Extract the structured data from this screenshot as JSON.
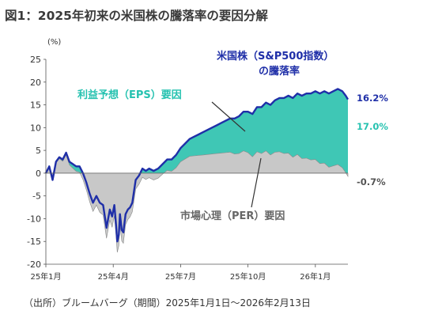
{
  "chart_data": {
    "type": "area",
    "title": "図1：2025年初来の米国株の騰落率の要因分解",
    "unit": "(%)",
    "ylim": [
      -20,
      25
    ],
    "yticks": [
      25,
      20,
      15,
      10,
      5,
      0,
      -5,
      -10,
      -15,
      -20
    ],
    "xticks": [
      "25年1月",
      "25年4月",
      "25年7月",
      "25年10月",
      "26年1月"
    ],
    "xtick_months": [
      0,
      3,
      6,
      9,
      12
    ],
    "grid": false,
    "x": [
      0,
      0.15,
      0.3,
      0.45,
      0.6,
      0.75,
      0.9,
      1.05,
      1.2,
      1.35,
      1.5,
      1.65,
      1.8,
      1.95,
      2.1,
      2.25,
      2.4,
      2.55,
      2.7,
      2.85,
      2.95,
      3.05,
      3.12,
      3.18,
      3.25,
      3.3,
      3.38,
      3.45,
      3.55,
      3.65,
      3.75,
      3.85,
      4.0,
      4.15,
      4.3,
      4.45,
      4.6,
      4.8,
      5.0,
      5.2,
      5.4,
      5.6,
      5.8,
      6.0,
      6.2,
      6.4,
      6.6,
      6.8,
      7.0,
      7.2,
      7.4,
      7.6,
      7.8,
      8.0,
      8.2,
      8.4,
      8.6,
      8.8,
      9.0,
      9.2,
      9.4,
      9.6,
      9.8,
      10.0,
      10.2,
      10.4,
      10.6,
      10.8,
      11.0,
      11.2,
      11.4,
      11.6,
      11.8,
      12.0,
      12.2,
      12.4,
      12.6,
      12.8,
      13.0,
      13.2,
      13.35,
      13.45
    ],
    "series": [
      {
        "name": "米国株（S&P500指数）の騰落率",
        "color": "#1f2fa8",
        "values": [
          0,
          1.5,
          -1.5,
          2.5,
          3.5,
          3.0,
          4.5,
          2.5,
          2.0,
          1.5,
          1.5,
          0,
          -2.0,
          -4.5,
          -6.5,
          -5.0,
          -6.5,
          -7.0,
          -12.0,
          -8.0,
          -9.5,
          -7.0,
          -11.0,
          -15.0,
          -13.5,
          -9.0,
          -12.5,
          -13.0,
          -9.0,
          -8.0,
          -7.5,
          -6.5,
          -1.5,
          -0.5,
          1.0,
          0.5,
          1.0,
          0.5,
          1.0,
          2.0,
          3.0,
          3.0,
          4.0,
          5.5,
          6.5,
          7.5,
          8.0,
          8.5,
          9.0,
          9.5,
          10.0,
          10.5,
          11.0,
          11.5,
          12.0,
          12.0,
          12.5,
          13.5,
          13.5,
          13.0,
          14.5,
          14.5,
          15.5,
          15.0,
          16.0,
          16.5,
          16.5,
          17.0,
          16.5,
          17.5,
          17.0,
          17.5,
          17.5,
          18.0,
          17.5,
          18.0,
          17.5,
          18.0,
          18.5,
          18.0,
          17.0,
          16.2
        ]
      },
      {
        "name": "利益予想（EPS）要因",
        "color": "#3fc7b5",
        "values": [
          0,
          0.1,
          0.1,
          0.2,
          0.3,
          0.4,
          0.5,
          0.7,
          0.9,
          1.1,
          1.3,
          1.4,
          1.6,
          1.8,
          1.9,
          2.0,
          2.1,
          2.2,
          2.3,
          2.3,
          2.4,
          2.4,
          2.4,
          2.4,
          2.4,
          2.4,
          2.4,
          2.4,
          2.3,
          2.2,
          2.1,
          2.0,
          2.0,
          1.9,
          1.9,
          1.9,
          2.0,
          2.0,
          2.1,
          2.2,
          2.4,
          2.6,
          2.8,
          3.0,
          3.4,
          3.8,
          4.2,
          4.6,
          5.0,
          5.4,
          5.8,
          6.2,
          6.6,
          7.0,
          7.4,
          7.8,
          8.2,
          8.6,
          9.0,
          9.4,
          9.8,
          10.2,
          10.6,
          11.0,
          11.4,
          11.8,
          12.2,
          12.6,
          13.0,
          13.4,
          13.8,
          14.2,
          14.6,
          15.0,
          15.4,
          15.8,
          16.2,
          16.4,
          16.6,
          16.8,
          16.9,
          17.0
        ]
      },
      {
        "name": "市場心理（PER）要因",
        "color": "#c8c8c8",
        "values": [
          0,
          1.4,
          -1.6,
          2.3,
          3.2,
          2.6,
          4.0,
          1.8,
          1.1,
          0.4,
          0.2,
          -1.4,
          -3.6,
          -6.3,
          -8.4,
          -7.0,
          -8.6,
          -9.2,
          -14.3,
          -10.3,
          -11.9,
          -9.4,
          -13.4,
          -17.4,
          -15.9,
          -11.4,
          -14.9,
          -15.4,
          -11.3,
          -10.2,
          -9.6,
          -8.5,
          -3.5,
          -2.4,
          -0.9,
          -1.4,
          -1.0,
          -1.5,
          -1.1,
          -0.2,
          0.6,
          0.4,
          1.2,
          2.5,
          3.1,
          3.7,
          3.8,
          3.9,
          4.0,
          4.1,
          4.2,
          4.3,
          4.4,
          4.5,
          4.6,
          4.2,
          4.3,
          4.9,
          4.5,
          3.6,
          4.7,
          4.3,
          4.9,
          4.0,
          4.6,
          4.7,
          4.3,
          4.4,
          3.5,
          4.1,
          3.2,
          3.3,
          2.9,
          3.0,
          2.1,
          2.2,
          1.3,
          1.6,
          1.9,
          1.2,
          0.1,
          -0.7
        ]
      }
    ],
    "labels": {
      "sp500_line1": "米国株（S&P500指数）",
      "sp500_line2": "の騰落率",
      "eps": "利益予想（EPS）要因",
      "per": "市場心理（PER）要因"
    },
    "end_values": {
      "sp500": "16.2%",
      "eps": "17.0%",
      "per": "-0.7%"
    },
    "source": "（出所）ブルームバーグ（期間）2025年1月1日～2026年2月13日"
  }
}
